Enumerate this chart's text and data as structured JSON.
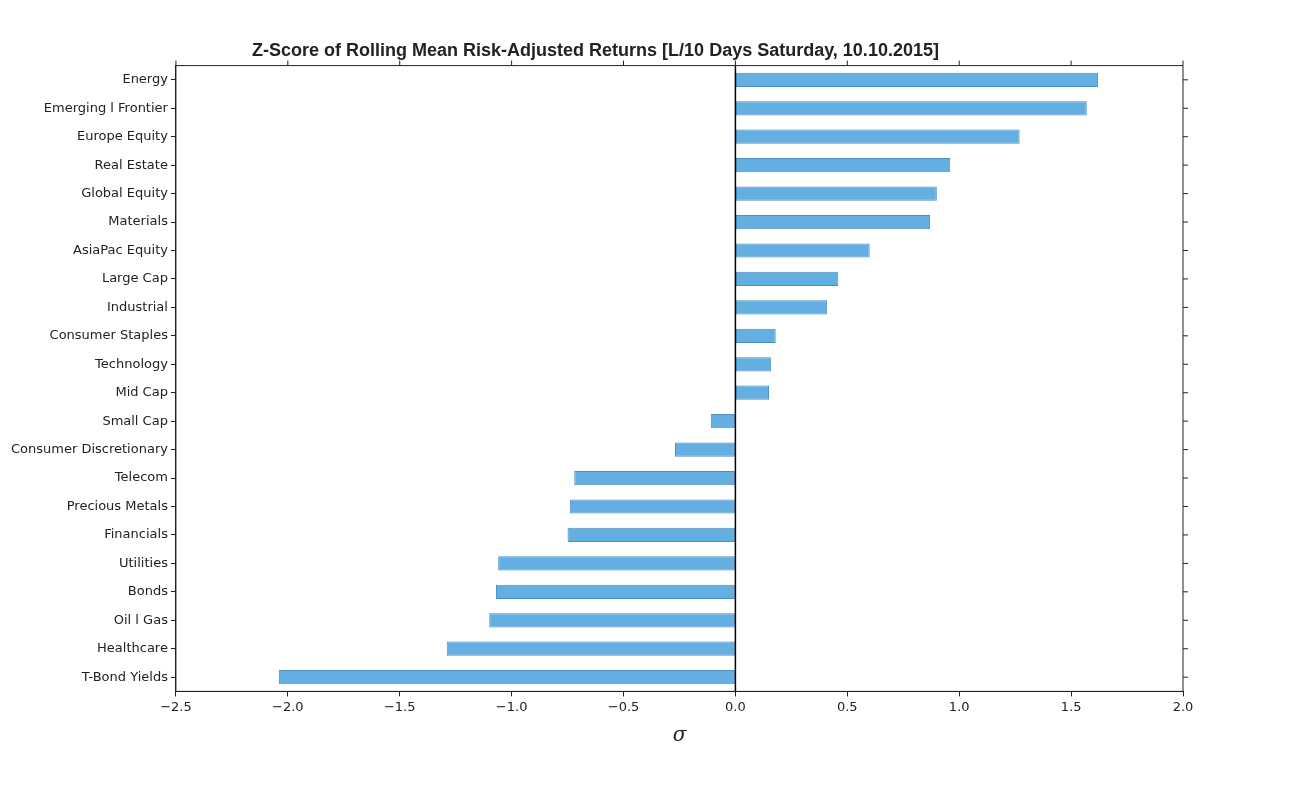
{
  "chart_data": {
    "type": "bar",
    "orientation": "horizontal",
    "title": "Z-Score of Rolling Mean Risk-Adjusted Returns [L/10 Days Saturday, 10.10.2015]",
    "xlabel": "σ",
    "categories": [
      "Energy",
      "Emerging l Frontier",
      "Europe Equity",
      "Real Estate",
      "Global Equity",
      "Materials",
      "AsiaPac Equity",
      "Large Cap",
      "Industrial",
      "Consumer Staples",
      "Technology",
      "Mid Cap",
      "Small Cap",
      "Consumer Discretionary",
      "Telecom",
      "Precious Metals",
      "Financials",
      "Utilities",
      "Bonds",
      "Oil l Gas",
      "Healthcare",
      "T-Bond Yields"
    ],
    "values": [
      1.62,
      1.57,
      1.27,
      0.96,
      0.9,
      0.87,
      0.6,
      0.46,
      0.41,
      0.18,
      0.16,
      0.15,
      -0.11,
      -0.27,
      -0.72,
      -0.74,
      -0.75,
      -1.06,
      -1.07,
      -1.1,
      -1.29,
      -2.04
    ],
    "color": "#63afe2",
    "xlim": [
      -2.5,
      2.0
    ],
    "xticks": [
      {
        "value": -2.5,
        "label": "−2.5"
      },
      {
        "value": -2.0,
        "label": "−2.0"
      },
      {
        "value": -1.5,
        "label": "−1.5"
      },
      {
        "value": -1.0,
        "label": "−1.0"
      },
      {
        "value": -0.5,
        "label": "−0.5"
      },
      {
        "value": 0,
        "label": "0.0"
      },
      {
        "value": 0.5,
        "label": "0.5"
      },
      {
        "value": 1.0,
        "label": "1.0"
      },
      {
        "value": 1.5,
        "label": "1.5"
      },
      {
        "value": 2.0,
        "label": "2.0"
      }
    ],
    "ref_lines": [
      {
        "axis": "x",
        "value": 0,
        "color": "#000000"
      }
    ]
  }
}
